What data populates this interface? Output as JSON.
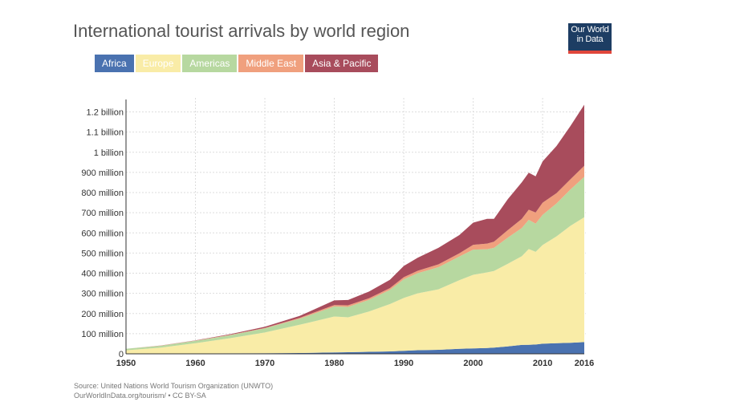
{
  "title": "International tourist arrivals by world region",
  "logo": {
    "line1": "Our World",
    "line2": "in Data"
  },
  "source": {
    "line1": "Source: United Nations World Tourism Organization (UNWTO)",
    "line2": "OurWorldInData.org/tourism/ • CC BY-SA"
  },
  "colors": {
    "Africa": "#4a72b0",
    "Europe": "#f9eca7",
    "Americas": "#b7d8a0",
    "Middle East": "#f0a07e",
    "Asia & Pacific": "#a84c5c"
  },
  "legend": [
    "Africa",
    "Europe",
    "Americas",
    "Middle East",
    "Asia & Pacific"
  ],
  "chart_data": {
    "type": "area",
    "stacked": true,
    "title": "International tourist arrivals by world region",
    "x": [
      1950,
      1955,
      1960,
      1965,
      1970,
      1975,
      1980,
      1982,
      1985,
      1988,
      1990,
      1992,
      1995,
      1998,
      2000,
      2002,
      2003,
      2005,
      2007,
      2008,
      2009,
      2010,
      2012,
      2014,
      2016
    ],
    "xticks": [
      1950,
      1960,
      1970,
      1980,
      1990,
      2000,
      2010,
      2016
    ],
    "ylim": [
      0,
      1250000000
    ],
    "yticks": [
      {
        "value": 0,
        "label": "0"
      },
      {
        "value": 100000000,
        "label": "100 million"
      },
      {
        "value": 200000000,
        "label": "200 million"
      },
      {
        "value": 300000000,
        "label": "300 million"
      },
      {
        "value": 400000000,
        "label": "400 million"
      },
      {
        "value": 500000000,
        "label": "500 million"
      },
      {
        "value": 600000000,
        "label": "600 million"
      },
      {
        "value": 700000000,
        "label": "700 million"
      },
      {
        "value": 800000000,
        "label": "800 million"
      },
      {
        "value": 900000000,
        "label": "900 million"
      },
      {
        "value": 1000000000,
        "label": "1 billion"
      },
      {
        "value": 1100000000,
        "label": "1.1 billion"
      },
      {
        "value": 1200000000,
        "label": "1.2 billion"
      }
    ],
    "grid": true,
    "legend_position": "top-left",
    "series": [
      {
        "name": "Africa",
        "values": [
          500000,
          1000000,
          1500000,
          2500000,
          3000000,
          4000000,
          7000000,
          8000000,
          10000000,
          12000000,
          15000000,
          18000000,
          20000000,
          25000000,
          27000000,
          29000000,
          31000000,
          37000000,
          44000000,
          45000000,
          46000000,
          50000000,
          53000000,
          55000000,
          58000000
        ]
      },
      {
        "name": "Europe",
        "values": [
          17000000,
          30000000,
          51000000,
          75000000,
          103000000,
          140000000,
          178000000,
          173000000,
          200000000,
          235000000,
          262000000,
          282000000,
          300000000,
          340000000,
          365000000,
          375000000,
          380000000,
          410000000,
          440000000,
          475000000,
          460000000,
          490000000,
          530000000,
          580000000,
          620000000
        ]
      },
      {
        "name": "Americas",
        "values": [
          7000000,
          9000000,
          12000000,
          15000000,
          20000000,
          30000000,
          50000000,
          52000000,
          58000000,
          70000000,
          93000000,
          100000000,
          110000000,
          118000000,
          125000000,
          115000000,
          115000000,
          130000000,
          140000000,
          145000000,
          140000000,
          150000000,
          163000000,
          180000000,
          200000000
        ]
      },
      {
        "name": "Middle East",
        "values": [
          200000,
          500000,
          1000000,
          2000000,
          2500000,
          4000000,
          7000000,
          8000000,
          8000000,
          9000000,
          10000000,
          12000000,
          14000000,
          16000000,
          24000000,
          28000000,
          30000000,
          37000000,
          45000000,
          50000000,
          55000000,
          60000000,
          51000000,
          51000000,
          55000000
        ]
      },
      {
        "name": "Asia & Pacific",
        "values": [
          200000,
          1000000,
          1500000,
          3000000,
          6000000,
          10000000,
          23000000,
          26000000,
          33000000,
          41000000,
          56000000,
          65000000,
          82000000,
          90000000,
          110000000,
          123000000,
          114000000,
          154000000,
          182000000,
          184000000,
          180000000,
          205000000,
          234000000,
          264000000,
          303000000
        ]
      }
    ]
  }
}
